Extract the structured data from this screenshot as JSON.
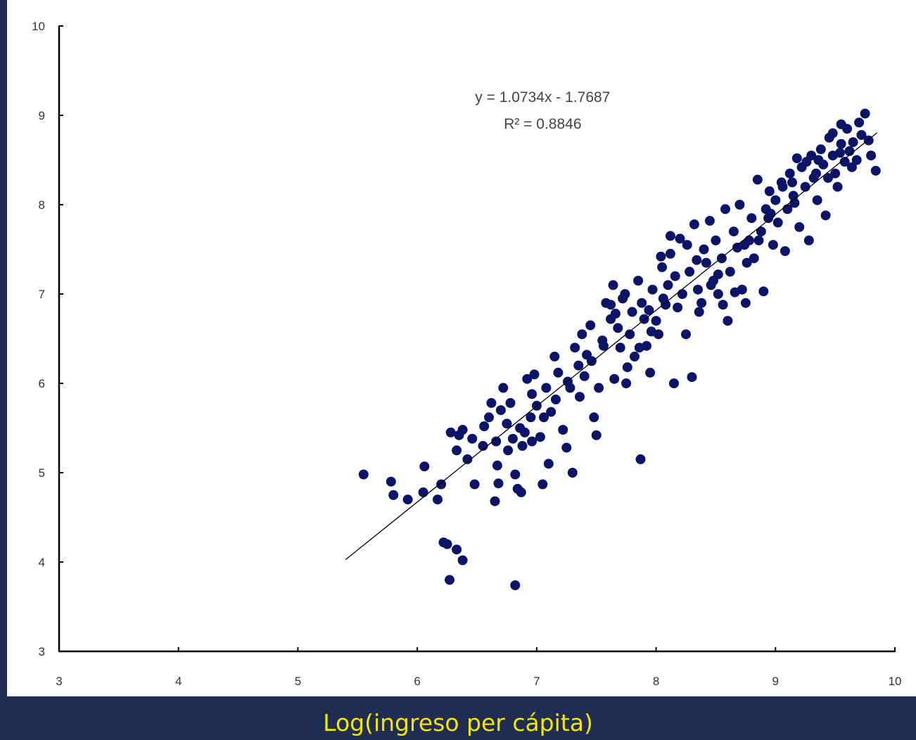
{
  "chart_data": {
    "type": "scatter",
    "title": "",
    "xlabel": "Log(ingreso per cápita)",
    "ylabel": "",
    "xlim": [
      3,
      10
    ],
    "ylim": [
      3,
      10
    ],
    "xticks": [
      3,
      4,
      5,
      6,
      7,
      8,
      9,
      10
    ],
    "yticks": [
      3,
      4,
      5,
      6,
      7,
      8,
      9,
      10
    ],
    "grid": false,
    "colors": {
      "points": "#0c1468",
      "trendline": "#000000",
      "axes": "#000000",
      "background": "#1f2d52",
      "xlabel": "#f5e600"
    },
    "trendline": {
      "equation": "y = 1.0734x - 1.7687",
      "r2": "R² = 0.8846",
      "slope": 1.0734,
      "intercept": -1.7687,
      "x_range": [
        5.4,
        9.85
      ]
    },
    "series": [
      {
        "points": [
          [
            5.55,
            4.98
          ],
          [
            5.78,
            4.9
          ],
          [
            5.8,
            4.75
          ],
          [
            5.92,
            4.7
          ],
          [
            6.05,
            4.78
          ],
          [
            6.06,
            5.07
          ],
          [
            6.17,
            4.7
          ],
          [
            6.2,
            4.87
          ],
          [
            6.22,
            4.22
          ],
          [
            6.25,
            4.2
          ],
          [
            6.27,
            3.8
          ],
          [
            6.33,
            4.14
          ],
          [
            6.38,
            4.02
          ],
          [
            6.28,
            5.45
          ],
          [
            6.33,
            5.25
          ],
          [
            6.38,
            5.48
          ],
          [
            6.42,
            5.15
          ],
          [
            6.48,
            4.87
          ],
          [
            6.35,
            5.42
          ],
          [
            6.55,
            5.3
          ],
          [
            6.6,
            5.62
          ],
          [
            6.62,
            5.78
          ],
          [
            6.65,
            4.68
          ],
          [
            6.68,
            4.88
          ],
          [
            6.67,
            5.08
          ],
          [
            6.7,
            5.7
          ],
          [
            6.72,
            5.95
          ],
          [
            6.75,
            5.55
          ],
          [
            6.78,
            5.78
          ],
          [
            6.8,
            5.38
          ],
          [
            6.82,
            4.98
          ],
          [
            6.84,
            4.82
          ],
          [
            6.82,
            3.74
          ],
          [
            6.87,
            4.78
          ],
          [
            6.88,
            5.3
          ],
          [
            6.9,
            5.45
          ],
          [
            6.92,
            6.05
          ],
          [
            6.95,
            5.62
          ],
          [
            6.96,
            5.35
          ],
          [
            6.98,
            6.1
          ],
          [
            7.0,
            5.75
          ],
          [
            7.03,
            5.4
          ],
          [
            7.05,
            4.87
          ],
          [
            7.08,
            5.95
          ],
          [
            7.1,
            5.1
          ],
          [
            7.12,
            5.68
          ],
          [
            7.15,
            6.3
          ],
          [
            7.18,
            6.12
          ],
          [
            7.22,
            5.48
          ],
          [
            7.25,
            5.28
          ],
          [
            7.28,
            5.95
          ],
          [
            7.3,
            5.0
          ],
          [
            7.32,
            6.4
          ],
          [
            7.35,
            6.2
          ],
          [
            7.38,
            6.55
          ],
          [
            7.4,
            6.08
          ],
          [
            7.42,
            6.32
          ],
          [
            7.45,
            6.65
          ],
          [
            7.48,
            5.62
          ],
          [
            7.5,
            5.42
          ],
          [
            7.52,
            5.95
          ],
          [
            7.55,
            6.48
          ],
          [
            7.58,
            6.9
          ],
          [
            7.62,
            6.72
          ],
          [
            7.64,
            7.1
          ],
          [
            7.65,
            6.05
          ],
          [
            7.68,
            6.62
          ],
          [
            7.7,
            6.4
          ],
          [
            7.72,
            6.95
          ],
          [
            7.75,
            6.0
          ],
          [
            7.78,
            6.55
          ],
          [
            7.8,
            6.8
          ],
          [
            7.82,
            6.3
          ],
          [
            7.85,
            7.15
          ],
          [
            7.87,
            5.15
          ],
          [
            7.9,
            6.72
          ],
          [
            7.92,
            6.42
          ],
          [
            7.95,
            6.12
          ],
          [
            7.97,
            7.05
          ],
          [
            8.0,
            6.7
          ],
          [
            8.02,
            6.55
          ],
          [
            8.05,
            7.3
          ],
          [
            8.08,
            6.88
          ],
          [
            8.1,
            7.1
          ],
          [
            8.12,
            7.45
          ],
          [
            8.15,
            6.0
          ],
          [
            8.18,
            6.85
          ],
          [
            8.2,
            7.62
          ],
          [
            8.22,
            7.0
          ],
          [
            8.25,
            6.55
          ],
          [
            8.28,
            7.25
          ],
          [
            8.3,
            6.07
          ],
          [
            8.32,
            7.78
          ],
          [
            8.35,
            7.05
          ],
          [
            8.38,
            6.9
          ],
          [
            8.4,
            7.5
          ],
          [
            8.42,
            7.35
          ],
          [
            8.45,
            7.82
          ],
          [
            8.48,
            7.15
          ],
          [
            8.5,
            7.6
          ],
          [
            8.52,
            7.0
          ],
          [
            8.55,
            7.4
          ],
          [
            8.58,
            7.95
          ],
          [
            8.6,
            6.7
          ],
          [
            8.62,
            7.25
          ],
          [
            8.65,
            7.7
          ],
          [
            8.68,
            7.52
          ],
          [
            8.7,
            8.0
          ],
          [
            8.72,
            7.05
          ],
          [
            8.75,
            6.9
          ],
          [
            8.78,
            7.6
          ],
          [
            8.8,
            7.85
          ],
          [
            8.82,
            7.4
          ],
          [
            8.85,
            8.28
          ],
          [
            8.88,
            7.7
          ],
          [
            8.9,
            7.03
          ],
          [
            8.92,
            7.95
          ],
          [
            8.95,
            8.15
          ],
          [
            8.98,
            7.55
          ],
          [
            9.0,
            8.05
          ],
          [
            9.02,
            7.8
          ],
          [
            9.05,
            8.25
          ],
          [
            9.08,
            7.48
          ],
          [
            9.1,
            7.95
          ],
          [
            9.12,
            8.35
          ],
          [
            9.15,
            8.1
          ],
          [
            9.18,
            8.52
          ],
          [
            9.2,
            7.75
          ],
          [
            9.22,
            8.42
          ],
          [
            9.25,
            8.2
          ],
          [
            9.28,
            7.6
          ],
          [
            9.3,
            8.55
          ],
          [
            9.32,
            8.3
          ],
          [
            9.35,
            8.05
          ],
          [
            9.38,
            8.62
          ],
          [
            9.4,
            8.45
          ],
          [
            9.42,
            7.88
          ],
          [
            9.45,
            8.75
          ],
          [
            9.48,
            8.55
          ],
          [
            9.5,
            8.35
          ],
          [
            9.52,
            8.2
          ],
          [
            9.55,
            8.68
          ],
          [
            9.58,
            8.48
          ],
          [
            9.6,
            8.85
          ],
          [
            9.62,
            8.6
          ],
          [
            9.65,
            8.7
          ],
          [
            9.68,
            8.5
          ],
          [
            9.7,
            8.92
          ],
          [
            9.72,
            8.78
          ],
          [
            9.75,
            9.02
          ],
          [
            9.78,
            8.72
          ],
          [
            9.8,
            8.55
          ],
          [
            9.84,
            8.38
          ],
          [
            9.48,
            8.8
          ],
          [
            9.55,
            8.9
          ],
          [
            9.36,
            8.5
          ],
          [
            9.44,
            8.3
          ],
          [
            9.26,
            8.48
          ],
          [
            9.16,
            8.02
          ],
          [
            9.06,
            8.2
          ],
          [
            8.96,
            7.9
          ],
          [
            8.86,
            7.6
          ],
          [
            8.76,
            7.35
          ],
          [
            8.66,
            7.02
          ],
          [
            8.56,
            6.88
          ],
          [
            8.46,
            7.1
          ],
          [
            8.36,
            6.8
          ],
          [
            8.26,
            7.55
          ],
          [
            8.16,
            7.2
          ],
          [
            8.06,
            6.95
          ],
          [
            7.96,
            6.58
          ],
          [
            7.86,
            6.4
          ],
          [
            7.76,
            6.18
          ],
          [
            7.66,
            6.78
          ],
          [
            7.56,
            6.42
          ],
          [
            7.46,
            6.25
          ],
          [
            7.36,
            5.85
          ],
          [
            7.26,
            6.02
          ],
          [
            7.16,
            5.82
          ],
          [
            7.06,
            5.62
          ],
          [
            6.96,
            5.88
          ],
          [
            6.86,
            5.5
          ],
          [
            6.76,
            5.25
          ],
          [
            6.66,
            5.35
          ],
          [
            6.56,
            5.52
          ],
          [
            6.46,
            5.38
          ],
          [
            7.62,
            6.88
          ],
          [
            7.88,
            6.9
          ],
          [
            8.12,
            7.65
          ],
          [
            8.34,
            7.38
          ],
          [
            8.52,
            7.22
          ],
          [
            8.74,
            7.55
          ],
          [
            8.94,
            7.85
          ],
          [
            9.14,
            8.25
          ],
          [
            9.34,
            8.35
          ],
          [
            9.54,
            8.58
          ],
          [
            9.64,
            8.42
          ],
          [
            7.74,
            7.0
          ],
          [
            7.94,
            6.82
          ],
          [
            8.04,
            7.42
          ]
        ]
      }
    ]
  }
}
